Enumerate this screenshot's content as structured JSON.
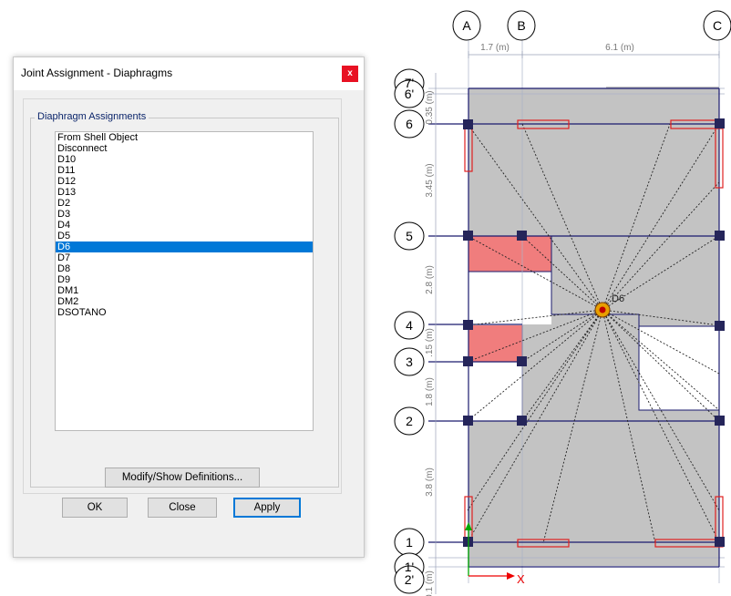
{
  "dialog": {
    "title": "Joint Assignment - Diaphragms",
    "close_glyph": "x",
    "group_label": "Diaphragm Assignments",
    "items": [
      "From Shell Object",
      "Disconnect",
      "D10",
      "D11",
      "D12",
      "D13",
      "D2",
      "D3",
      "D4",
      "D5",
      "D6",
      "D7",
      "D8",
      "D9",
      "DM1",
      "DM2",
      "DSOTANO"
    ],
    "selected_item": "D6",
    "buttons": {
      "modify": "Modify/Show Definitions...",
      "ok": "OK",
      "close": "Close",
      "apply": "Apply"
    }
  },
  "drawing": {
    "column_grids": [
      "A",
      "B",
      "C"
    ],
    "row_grids": [
      "7'",
      "6'",
      "6",
      "5",
      "4",
      "3",
      "2",
      "1",
      "1'",
      "2'"
    ],
    "dimensions_top": [
      "1.7 (m)",
      "6.1 (m)"
    ],
    "dimensions_left": [
      "0.35 (m)",
      "3.45 (m)",
      "2.8 (m)",
      ".15 (m)",
      "1.8 (m)",
      "3.8 (m)",
      "0.1 (m)"
    ],
    "diaphragm_label": "D6",
    "axis_x_label": "X",
    "colors": {
      "slab": "#c3c3c3",
      "slab_highlight": "#f07d7d",
      "grid_line": "#1a1a6e",
      "joint": "#25255a",
      "wall": "#e02020",
      "axis_y": "#00aa00",
      "axis_x": "#ee0000",
      "selection": "#0078d7"
    },
    "icons": [
      "grid-bubble-icon",
      "joint-marker-icon",
      "diaphragm-center-icon",
      "axis-arrow-icon"
    ]
  }
}
